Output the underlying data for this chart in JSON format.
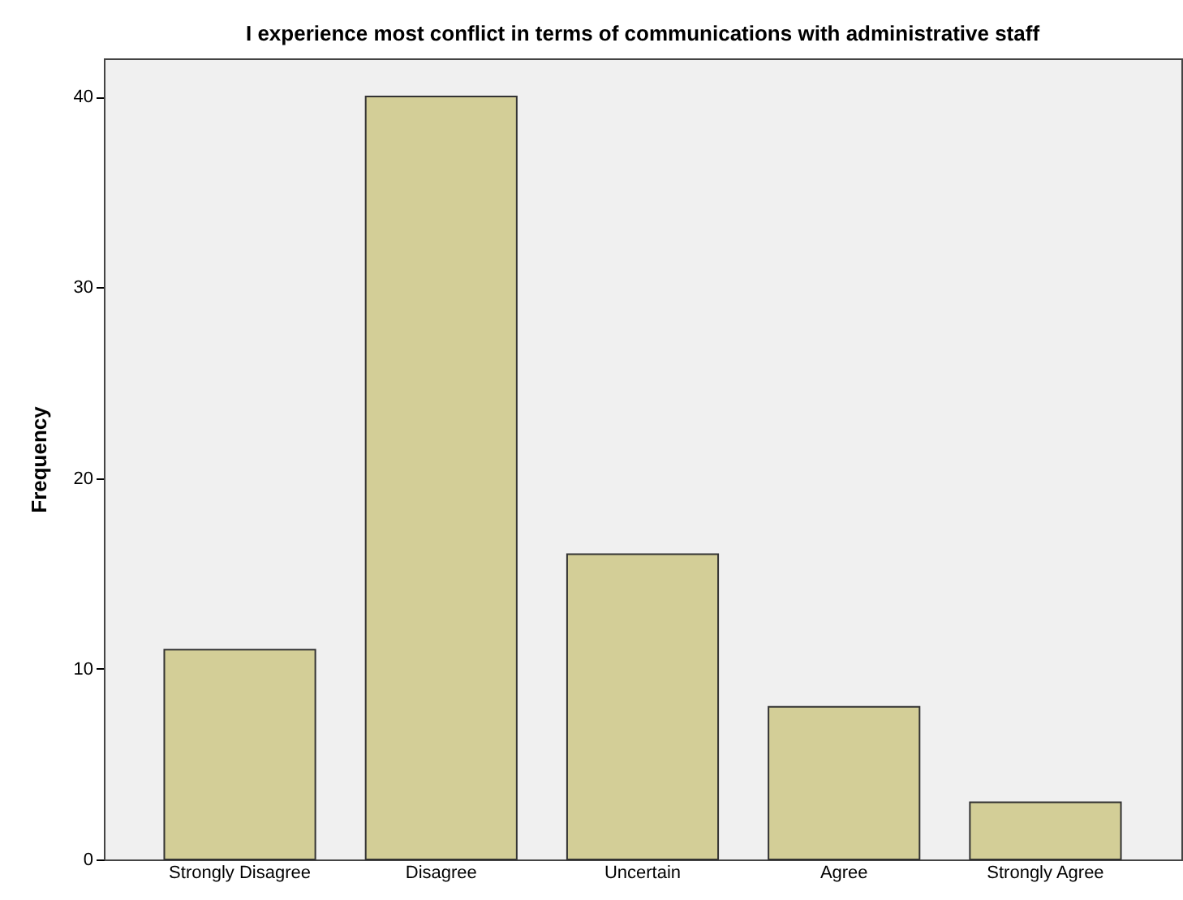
{
  "chart_data": {
    "type": "bar",
    "title": "I experience most conflict in terms of communications with administrative staff",
    "ylabel": "Frequency",
    "categories": [
      "Strongly Disagree",
      "Disagree",
      "Uncertain",
      "Agree",
      "Strongly Agree"
    ],
    "values": [
      11,
      40,
      16,
      8,
      3
    ],
    "color": "#d3ce97",
    "ylim": [
      0,
      42
    ],
    "yticks": [
      0,
      10,
      20,
      30,
      40
    ],
    "grid": false
  }
}
